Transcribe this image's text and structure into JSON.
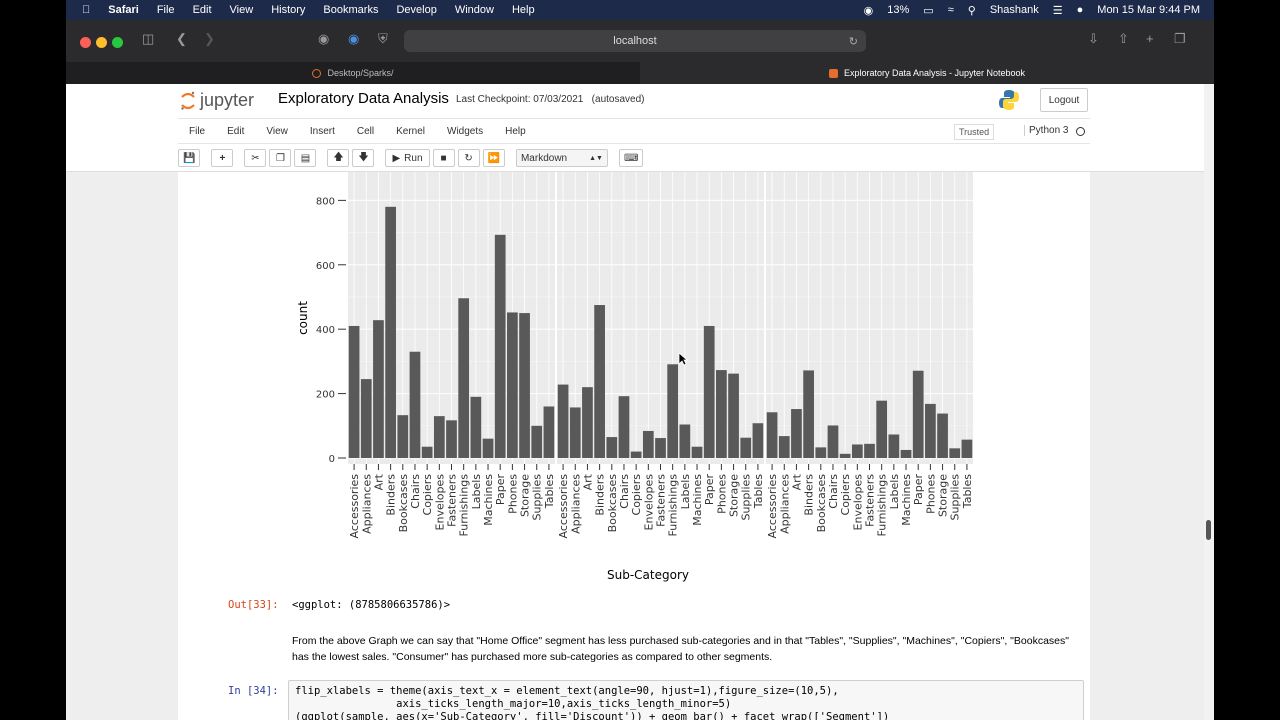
{
  "menubar": {
    "app": "Safari",
    "items": [
      "File",
      "Edit",
      "View",
      "History",
      "Bookmarks",
      "Develop",
      "Window",
      "Help"
    ],
    "battery": "13%",
    "user": "Shashank",
    "datetime": "Mon 15 Mar  9:44 PM"
  },
  "safari": {
    "url": "localhost",
    "tabs": [
      {
        "label": "Desktop/Sparks/"
      },
      {
        "label": "Exploratory Data Analysis - Jupyter Notebook"
      }
    ]
  },
  "jupyter": {
    "logo_text": "jupyter",
    "title": "Exploratory Data Analysis",
    "checkpoint": "Last Checkpoint: 07/03/2021",
    "autosaved": "(autosaved)",
    "logout": "Logout",
    "menu": [
      "File",
      "Edit",
      "View",
      "Insert",
      "Cell",
      "Kernel",
      "Widgets",
      "Help"
    ],
    "trusted": "Trusted",
    "kernel": "Python 3",
    "run_label": "Run",
    "cell_type": "Markdown"
  },
  "chart_data": {
    "type": "bar",
    "xlabel": "Sub-Category",
    "ylabel": "count",
    "yticks": [
      0,
      200,
      400,
      600,
      800
    ],
    "categories": [
      "Accessories",
      "Appliances",
      "Art",
      "Binders",
      "Bookcases",
      "Chairs",
      "Copiers",
      "Envelopes",
      "Fasteners",
      "Furnishings",
      "Labels",
      "Machines",
      "Paper",
      "Phones",
      "Storage",
      "Supplies",
      "Tables"
    ],
    "panels": [
      {
        "values": [
          410,
          245,
          428,
          780,
          133,
          330,
          35,
          130,
          117,
          496,
          190,
          60,
          693,
          452,
          450,
          100,
          160
        ]
      },
      {
        "values": [
          228,
          157,
          220,
          475,
          65,
          192,
          20,
          84,
          62,
          291,
          104,
          35,
          410,
          273,
          262,
          63,
          108
        ]
      },
      {
        "values": [
          142,
          68,
          152,
          272,
          33,
          101,
          13,
          42,
          44,
          178,
          73,
          25,
          271,
          168,
          138,
          30,
          57
        ]
      }
    ]
  },
  "output": {
    "prompt": "Out[33]:",
    "text": "<ggplot: (8785806635786)>"
  },
  "markdown": {
    "text": "From the above Graph we can say that \"Home Office\" segment has less purchased sub-categories and in that \"Tables\", \"Supplies\", \"Machines\", \"Copiers\", \"Bookcases\" has the lowest sales. \"Consumer\" has purchased more sub-categories as compared to other segments."
  },
  "code_cell": {
    "prompt": "In [34]:",
    "code": "flip_xlabels = theme(axis_text_x = element_text(angle=90, hjust=1),figure_size=(10,5),\n                axis_ticks_length_major=10,axis_ticks_length_minor=5)\n(ggplot(sample, aes(x='Sub-Category', fill='Discount')) + geom_bar() + facet_wrap(['Segment'])"
  }
}
